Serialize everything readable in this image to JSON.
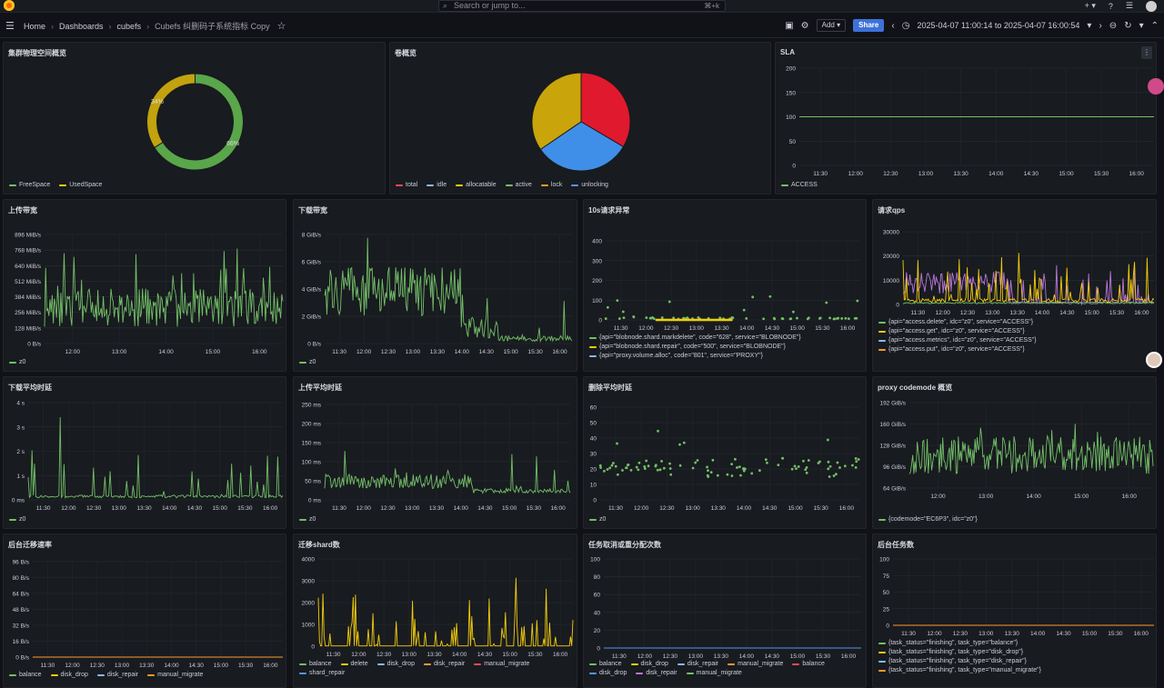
{
  "topbar": {
    "search_placeholder": "Search or jump to...",
    "shortcut": "⌘+k"
  },
  "navbar": {
    "breadcrumbs": [
      "Home",
      "Dashboards",
      "cubefs",
      "Cubefs 纠删码子系统指标 Copy"
    ],
    "add_label": "Add",
    "share_label": "Share",
    "time_range": "2025-04-07 11:00:14 to 2025-04-07 16:00:54"
  },
  "colors": {
    "green": "#73bf69",
    "yellow": "#f2cc0c",
    "blue": "#8ab8ff",
    "orange": "#ff9830",
    "red": "#f2495c",
    "purple": "#b877d9",
    "lightblue": "#5794f2"
  },
  "panels": {
    "cluster_space": {
      "title": "集群物理空间概览",
      "chart_data": {
        "type": "pie",
        "donut": true,
        "slices": [
          {
            "name": "FreeSpace",
            "value": 66,
            "label": "66%",
            "color": "#5aa64b"
          },
          {
            "name": "UsedSpace",
            "value": 34,
            "label": "34%",
            "color": "#c2a20e"
          }
        ]
      },
      "legend": [
        {
          "name": "FreeSpace",
          "color": "#73bf69"
        },
        {
          "name": "UsedSpace",
          "color": "#f2cc0c"
        }
      ]
    },
    "volume": {
      "title": "卷概览",
      "chart_data": {
        "type": "pie",
        "slices": [
          {
            "name": "total",
            "value": 33.5,
            "color": "#e0192e"
          },
          {
            "name": "unlocking",
            "value": 32,
            "color": "#3f8fe8"
          },
          {
            "name": "allocatable",
            "value": 34.5,
            "color": "#c9a50b"
          }
        ]
      },
      "legend": [
        {
          "name": "total",
          "color": "#f2495c"
        },
        {
          "name": "idle",
          "color": "#8ab8ff"
        },
        {
          "name": "allocatable",
          "color": "#f2cc0c"
        },
        {
          "name": "active",
          "color": "#73bf69"
        },
        {
          "name": "lock",
          "color": "#ff9830"
        },
        {
          "name": "unlocking",
          "color": "#5794f2"
        }
      ]
    },
    "sla": {
      "title": "SLA",
      "chart_data": {
        "type": "line",
        "yticks": [
          "200",
          "150",
          "100",
          "50",
          "0"
        ],
        "ylim": [
          0,
          200
        ],
        "xticks": [
          "11:30",
          "12:00",
          "12:30",
          "13:00",
          "13:30",
          "14:00",
          "14:30",
          "15:00",
          "15:30",
          "16:00"
        ],
        "series": [
          {
            "name": "ACCESS",
            "value": 100
          }
        ]
      },
      "legend": [
        {
          "name": "ACCESS",
          "color": "#73bf69"
        }
      ]
    },
    "upload_bw": {
      "title": "上传带宽",
      "yticks": [
        "896 MiB/s",
        "768 MiB/s",
        "640 MiB/s",
        "512 MiB/s",
        "384 MiB/s",
        "256 MiB/s",
        "128 MiB/s",
        "0 B/s"
      ],
      "xticks": [
        "12:00",
        "13:00",
        "14:00",
        "15:00",
        "16:00"
      ],
      "legend": [
        {
          "name": "z0",
          "color": "#73bf69"
        }
      ]
    },
    "download_bw": {
      "title": "下载带宽",
      "yticks": [
        "8 GiB/s",
        "6 GiB/s",
        "4 GiB/s",
        "2 GiB/s",
        "0 B/s"
      ],
      "xticks": [
        "11:30",
        "12:00",
        "12:30",
        "13:00",
        "13:30",
        "14:00",
        "14:30",
        "15:00",
        "15:30",
        "16:00"
      ],
      "legend": [
        {
          "name": "z0",
          "color": "#73bf69"
        }
      ]
    },
    "req_errors": {
      "title": "10s请求异常",
      "yticks": [
        "400",
        "300",
        "200",
        "100",
        "0"
      ],
      "xticks": [
        "11:30",
        "12:00",
        "12:30",
        "13:00",
        "13:30",
        "14:00",
        "14:30",
        "15:00",
        "15:30",
        "16:00"
      ],
      "legend": [
        {
          "name": "{api=\"blobnode.shard.markdelete\", code=\"628\", service=\"BLOBNODE\"}",
          "color": "#73bf69"
        },
        {
          "name": "{api=\"blobnode.shard.repair\", code=\"500\", service=\"BLOBNODE\"}",
          "color": "#f2cc0c"
        },
        {
          "name": "{api=\"proxy.volume.alloc\", code=\"801\", service=\"PROXY\"}",
          "color": "#8ab8ff"
        }
      ]
    },
    "req_qps": {
      "title": "请求qps",
      "yticks": [
        "30000",
        "20000",
        "10000",
        "0"
      ],
      "xticks": [
        "11:30",
        "12:00",
        "12:30",
        "13:00",
        "13:30",
        "14:00",
        "14:30",
        "15:00",
        "15:30",
        "16:00"
      ],
      "legend": [
        {
          "name": "{api=\"access.delete\", idc=\"z0\", service=\"ACCESS\"}",
          "color": "#73bf69"
        },
        {
          "name": "{api=\"access.get\", idc=\"z0\", service=\"ACCESS\"}",
          "color": "#f2cc0c"
        },
        {
          "name": "{api=\"access.metrics\", idc=\"z0\", service=\"ACCESS\"}",
          "color": "#8ab8ff"
        },
        {
          "name": "{api=\"access.put\", idc=\"z0\", service=\"ACCESS\"}",
          "color": "#ff9830"
        }
      ]
    },
    "download_latency": {
      "title": "下载平均时延",
      "yticks": [
        "4 s",
        "3 s",
        "2 s",
        "1 s",
        "0 ms"
      ],
      "xticks": [
        "11:30",
        "12:00",
        "12:30",
        "13:00",
        "13:30",
        "14:00",
        "14:30",
        "15:00",
        "15:30",
        "16:00"
      ],
      "legend": [
        {
          "name": "z0",
          "color": "#73bf69"
        }
      ]
    },
    "upload_latency": {
      "title": "上传平均时延",
      "yticks": [
        "250 ms",
        "200 ms",
        "150 ms",
        "100 ms",
        "50 ms",
        "0 ms"
      ],
      "xticks": [
        "11:30",
        "12:00",
        "12:30",
        "13:00",
        "13:30",
        "14:00",
        "14:30",
        "15:00",
        "15:30",
        "16:00"
      ],
      "legend": [
        {
          "name": "z0",
          "color": "#73bf69"
        }
      ]
    },
    "delete_latency": {
      "title": "删除平均时延",
      "yticks": [
        "60",
        "50",
        "40",
        "30",
        "20",
        "10",
        "0"
      ],
      "xticks": [
        "11:30",
        "12:00",
        "12:30",
        "13:00",
        "13:30",
        "14:00",
        "14:30",
        "15:00",
        "15:30",
        "16:00"
      ],
      "legend": [
        {
          "name": "z0",
          "color": "#73bf69"
        }
      ]
    },
    "proxy_codemode": {
      "title": "proxy codemode 概览",
      "yticks": [
        "192 GiB/s",
        "160 GiB/s",
        "128 GiB/s",
        "96 GiB/s",
        "64 GiB/s"
      ],
      "xticks": [
        "12:00",
        "13:00",
        "14:00",
        "15:00",
        "16:00"
      ],
      "legend": [
        {
          "name": "{codemode=\"EC6P3\", idc=\"z0\"}",
          "color": "#73bf69"
        }
      ]
    },
    "migrate_rate": {
      "title": "后台迁移速率",
      "yticks": [
        "96 B/s",
        "80 B/s",
        "64 B/s",
        "48 B/s",
        "32 B/s",
        "16 B/s",
        "0 B/s"
      ],
      "xticks": [
        "11:30",
        "12:00",
        "12:30",
        "13:00",
        "13:30",
        "14:00",
        "14:30",
        "15:00",
        "15:30",
        "16:00"
      ],
      "legend": [
        {
          "name": "balance",
          "color": "#73bf69"
        },
        {
          "name": "disk_drop",
          "color": "#f2cc0c"
        },
        {
          "name": "disk_repair",
          "color": "#8ab8ff"
        },
        {
          "name": "manual_migrate",
          "color": "#ff9830"
        }
      ]
    },
    "migrate_shards": {
      "title": "迁移shard数",
      "yticks": [
        "4000",
        "3000",
        "2000",
        "1000",
        "0"
      ],
      "xticks": [
        "11:30",
        "12:00",
        "12:30",
        "13:00",
        "13:30",
        "14:00",
        "14:30",
        "15:00",
        "15:30",
        "16:00"
      ],
      "legend": [
        {
          "name": "balance",
          "color": "#73bf69"
        },
        {
          "name": "delete",
          "color": "#f2cc0c"
        },
        {
          "name": "disk_drop",
          "color": "#8ab8ff"
        },
        {
          "name": "disk_repair",
          "color": "#ff9830"
        },
        {
          "name": "manual_migrate",
          "color": "#f2495c"
        },
        {
          "name": "shard_repair",
          "color": "#5794f2"
        }
      ]
    },
    "task_cancel": {
      "title": "任务取消或重分配次数",
      "yticks": [
        "100",
        "80",
        "60",
        "40",
        "20",
        "0"
      ],
      "xticks": [
        "11:30",
        "12:00",
        "12:30",
        "13:00",
        "13:30",
        "14:00",
        "14:30",
        "15:00",
        "15:30",
        "16:00"
      ],
      "legend": [
        {
          "name": "balance",
          "color": "#73bf69"
        },
        {
          "name": "disk_drop",
          "color": "#f2cc0c"
        },
        {
          "name": "disk_repair",
          "color": "#8ab8ff"
        },
        {
          "name": "manual_migrate",
          "color": "#ff9830"
        },
        {
          "name": "balance",
          "color": "#f2495c"
        },
        {
          "name": "disk_drop",
          "color": "#5794f2"
        },
        {
          "name": "disk_repair",
          "color": "#b877d9"
        },
        {
          "name": "manual_migrate",
          "color": "#73bf69"
        }
      ]
    },
    "bg_tasks": {
      "title": "后台任务数",
      "yticks": [
        "100",
        "75",
        "50",
        "25",
        "0"
      ],
      "xticks": [
        "11:30",
        "12:00",
        "12:30",
        "13:00",
        "13:30",
        "14:00",
        "14:30",
        "15:00",
        "15:30",
        "16:00"
      ],
      "legend": [
        {
          "name": "{task_status=\"finishing\", task_type=\"balance\"}",
          "color": "#73bf69"
        },
        {
          "name": "{task_status=\"finishing\", task_type=\"disk_drop\"}",
          "color": "#f2cc0c"
        },
        {
          "name": "{task_status=\"finishing\", task_type=\"disk_repair\"}",
          "color": "#8ab8ff"
        },
        {
          "name": "{task_status=\"finishing\", task_type=\"manual_migrate\"}",
          "color": "#ff9830"
        }
      ]
    }
  }
}
